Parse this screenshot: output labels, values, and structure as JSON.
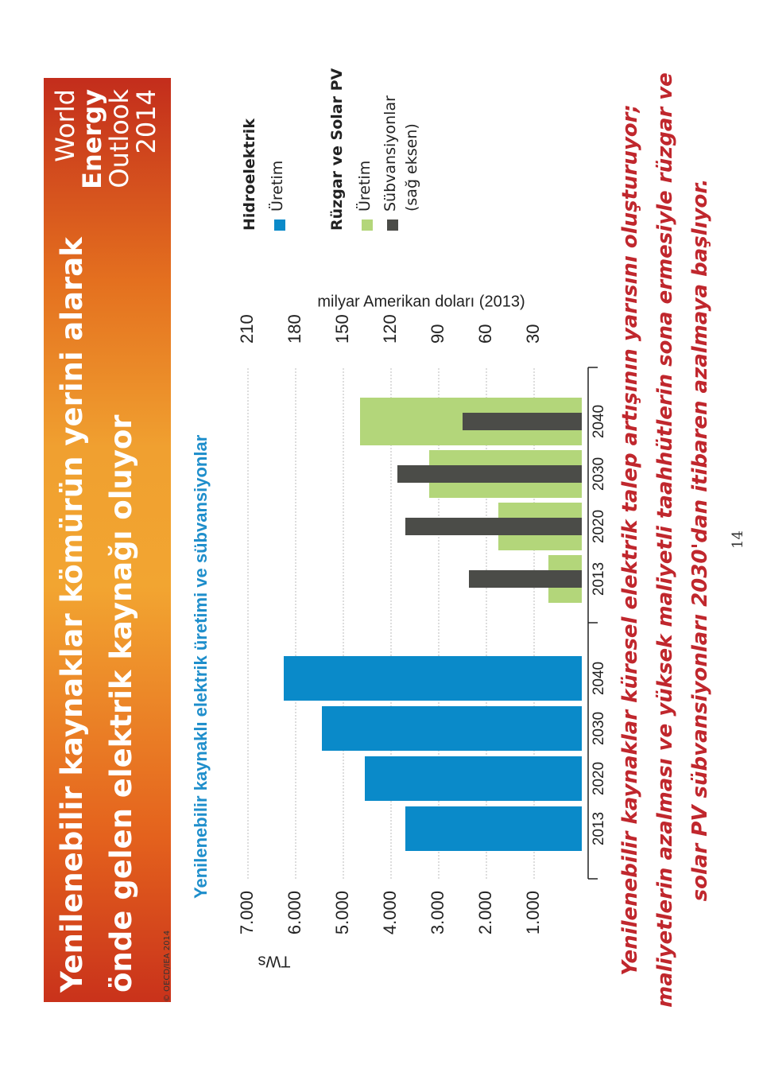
{
  "header": {
    "title_lines": [
      "Yenilenebilir kaynaklar kömürün yerini alarak",
      "önde gelen elektrik kaynağı oluyor"
    ],
    "brand_lines": [
      "World",
      "Energy",
      "Outlook",
      "2014"
    ],
    "copyright": "© OECD/IEA 2014"
  },
  "chart_data": [
    {
      "type": "bar",
      "title": "Yenilenebilir kaynaklı elektrik üretimi ve sübvansiyonlar",
      "y_label": "TWs",
      "legend_title": "Hidroelektrik",
      "categories": [
        "2013",
        "2020",
        "2030",
        "2040"
      ],
      "series": [
        {
          "name": "Üretim",
          "color": "#0a8ac9",
          "values": [
            3700,
            4550,
            5450,
            6250
          ]
        }
      ],
      "ylim": [
        0,
        7000
      ],
      "yticks": [
        {
          "value": 1000,
          "label": "1.000"
        },
        {
          "value": 2000,
          "label": "2.000"
        },
        {
          "value": 3000,
          "label": "3.000"
        },
        {
          "value": 4000,
          "label": "4.000"
        },
        {
          "value": 5000,
          "label": "5.000"
        },
        {
          "value": 6000,
          "label": "6.000"
        },
        {
          "value": 7000,
          "label": "7.000"
        }
      ],
      "grid": true
    },
    {
      "type": "bar",
      "legend_title": "Rüzgar ve Solar PV",
      "y2_label": "milyar Amerikan doları (2013)",
      "categories": [
        "2013",
        "2020",
        "2030",
        "2040"
      ],
      "series": [
        {
          "name": "Üretim",
          "color": "#b3d67a",
          "values": [
            700,
            1750,
            3200,
            4650
          ]
        },
        {
          "name": "Sübvansiyonlar (sağ eksen)",
          "color": "#4b4c48",
          "axis": "y2",
          "values": [
            71,
            111,
            116,
            75
          ]
        }
      ],
      "ylim": [
        0,
        7000
      ],
      "y2lim": [
        0,
        210
      ],
      "y2ticks": [
        30,
        60,
        90,
        120,
        150,
        180,
        210
      ]
    }
  ],
  "footer": {
    "lines": [
      "Yenilenebilir kaynaklar küresel elektrik talep artışının yarısını oluşturuyor;",
      "maliyetlerin azalması ve yüksek maliyetli taahhütlerin sona ermesiyle rüzgar ve",
      "solar PV sübvansiyonları 2030'dan itibaren azalmaya başlıyor."
    ],
    "page": "14"
  }
}
